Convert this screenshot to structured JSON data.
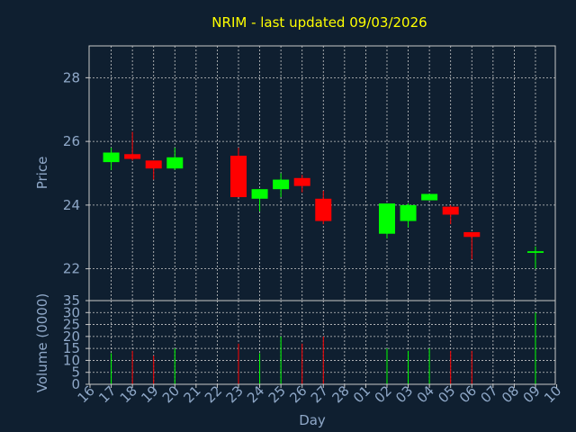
{
  "chart_data": [
    {
      "type": "candlestick",
      "title": "NRIM - last updated 09/03/2026",
      "ylabel": "Price",
      "ylim": [
        21,
        29
      ],
      "yticks": [
        22,
        24,
        26,
        28
      ],
      "grid": true,
      "colors": {
        "up": "#00ff00",
        "down": "#ff0000"
      },
      "x_labels": [
        "16",
        "17",
        "18",
        "19",
        "20",
        "21",
        "22",
        "23",
        "24",
        "25",
        "26",
        "27",
        "28",
        "01",
        "02",
        "03",
        "04",
        "05",
        "06",
        "07",
        "08",
        "09",
        "10"
      ],
      "candles": [
        {
          "x": "17",
          "open": 25.35,
          "high": 25.8,
          "low": 25.1,
          "close": 25.65
        },
        {
          "x": "18",
          "open": 25.6,
          "high": 26.3,
          "low": 25.4,
          "close": 25.45
        },
        {
          "x": "19",
          "open": 25.4,
          "high": 25.4,
          "low": 24.8,
          "close": 25.15
        },
        {
          "x": "20",
          "open": 25.15,
          "high": 25.8,
          "low": 25.1,
          "close": 25.5
        },
        {
          "x": "23",
          "open": 25.55,
          "high": 25.8,
          "low": 24.25,
          "close": 24.25
        },
        {
          "x": "24",
          "open": 24.2,
          "high": 24.5,
          "low": 23.8,
          "close": 24.5
        },
        {
          "x": "25",
          "open": 24.5,
          "high": 25.0,
          "low": 24.25,
          "close": 24.8
        },
        {
          "x": "26",
          "open": 24.85,
          "high": 24.95,
          "low": 24.4,
          "close": 24.6
        },
        {
          "x": "27",
          "open": 24.2,
          "high": 24.45,
          "low": 23.4,
          "close": 23.5
        },
        {
          "x": "02",
          "open": 23.1,
          "high": 24.05,
          "low": 22.95,
          "close": 24.05
        },
        {
          "x": "03",
          "open": 23.5,
          "high": 24.05,
          "low": 23.3,
          "close": 24.0
        },
        {
          "x": "04",
          "open": 24.15,
          "high": 24.35,
          "low": 24.15,
          "close": 24.35
        },
        {
          "x": "05",
          "open": 23.95,
          "high": 24.0,
          "low": 23.4,
          "close": 23.7
        },
        {
          "x": "06",
          "open": 23.15,
          "high": 23.15,
          "low": 22.3,
          "close": 23.0
        },
        {
          "x": "09",
          "open": 22.5,
          "high": 22.7,
          "low": 22.0,
          "close": 22.55
        }
      ]
    },
    {
      "type": "bar",
      "xlabel": "Day",
      "ylabel": "Volume (0000)",
      "ylim": [
        0,
        35
      ],
      "yticks": [
        0,
        5,
        10,
        15,
        20,
        25,
        30,
        35
      ],
      "grid": true,
      "volumes": [
        {
          "x": "17",
          "value": 13,
          "dir": "up"
        },
        {
          "x": "18",
          "value": 14,
          "dir": "down"
        },
        {
          "x": "19",
          "value": 12,
          "dir": "down"
        },
        {
          "x": "20",
          "value": 15,
          "dir": "up"
        },
        {
          "x": "23",
          "value": 17,
          "dir": "down"
        },
        {
          "x": "24",
          "value": 13,
          "dir": "up"
        },
        {
          "x": "25",
          "value": 20,
          "dir": "up"
        },
        {
          "x": "26",
          "value": 17,
          "dir": "down"
        },
        {
          "x": "27",
          "value": 20,
          "dir": "down"
        },
        {
          "x": "02",
          "value": 15,
          "dir": "up"
        },
        {
          "x": "03",
          "value": 14,
          "dir": "up"
        },
        {
          "x": "04",
          "value": 15,
          "dir": "up"
        },
        {
          "x": "05",
          "value": 14,
          "dir": "down"
        },
        {
          "x": "06",
          "value": 14,
          "dir": "down"
        },
        {
          "x": "09",
          "value": 30,
          "dir": "up"
        }
      ]
    }
  ]
}
